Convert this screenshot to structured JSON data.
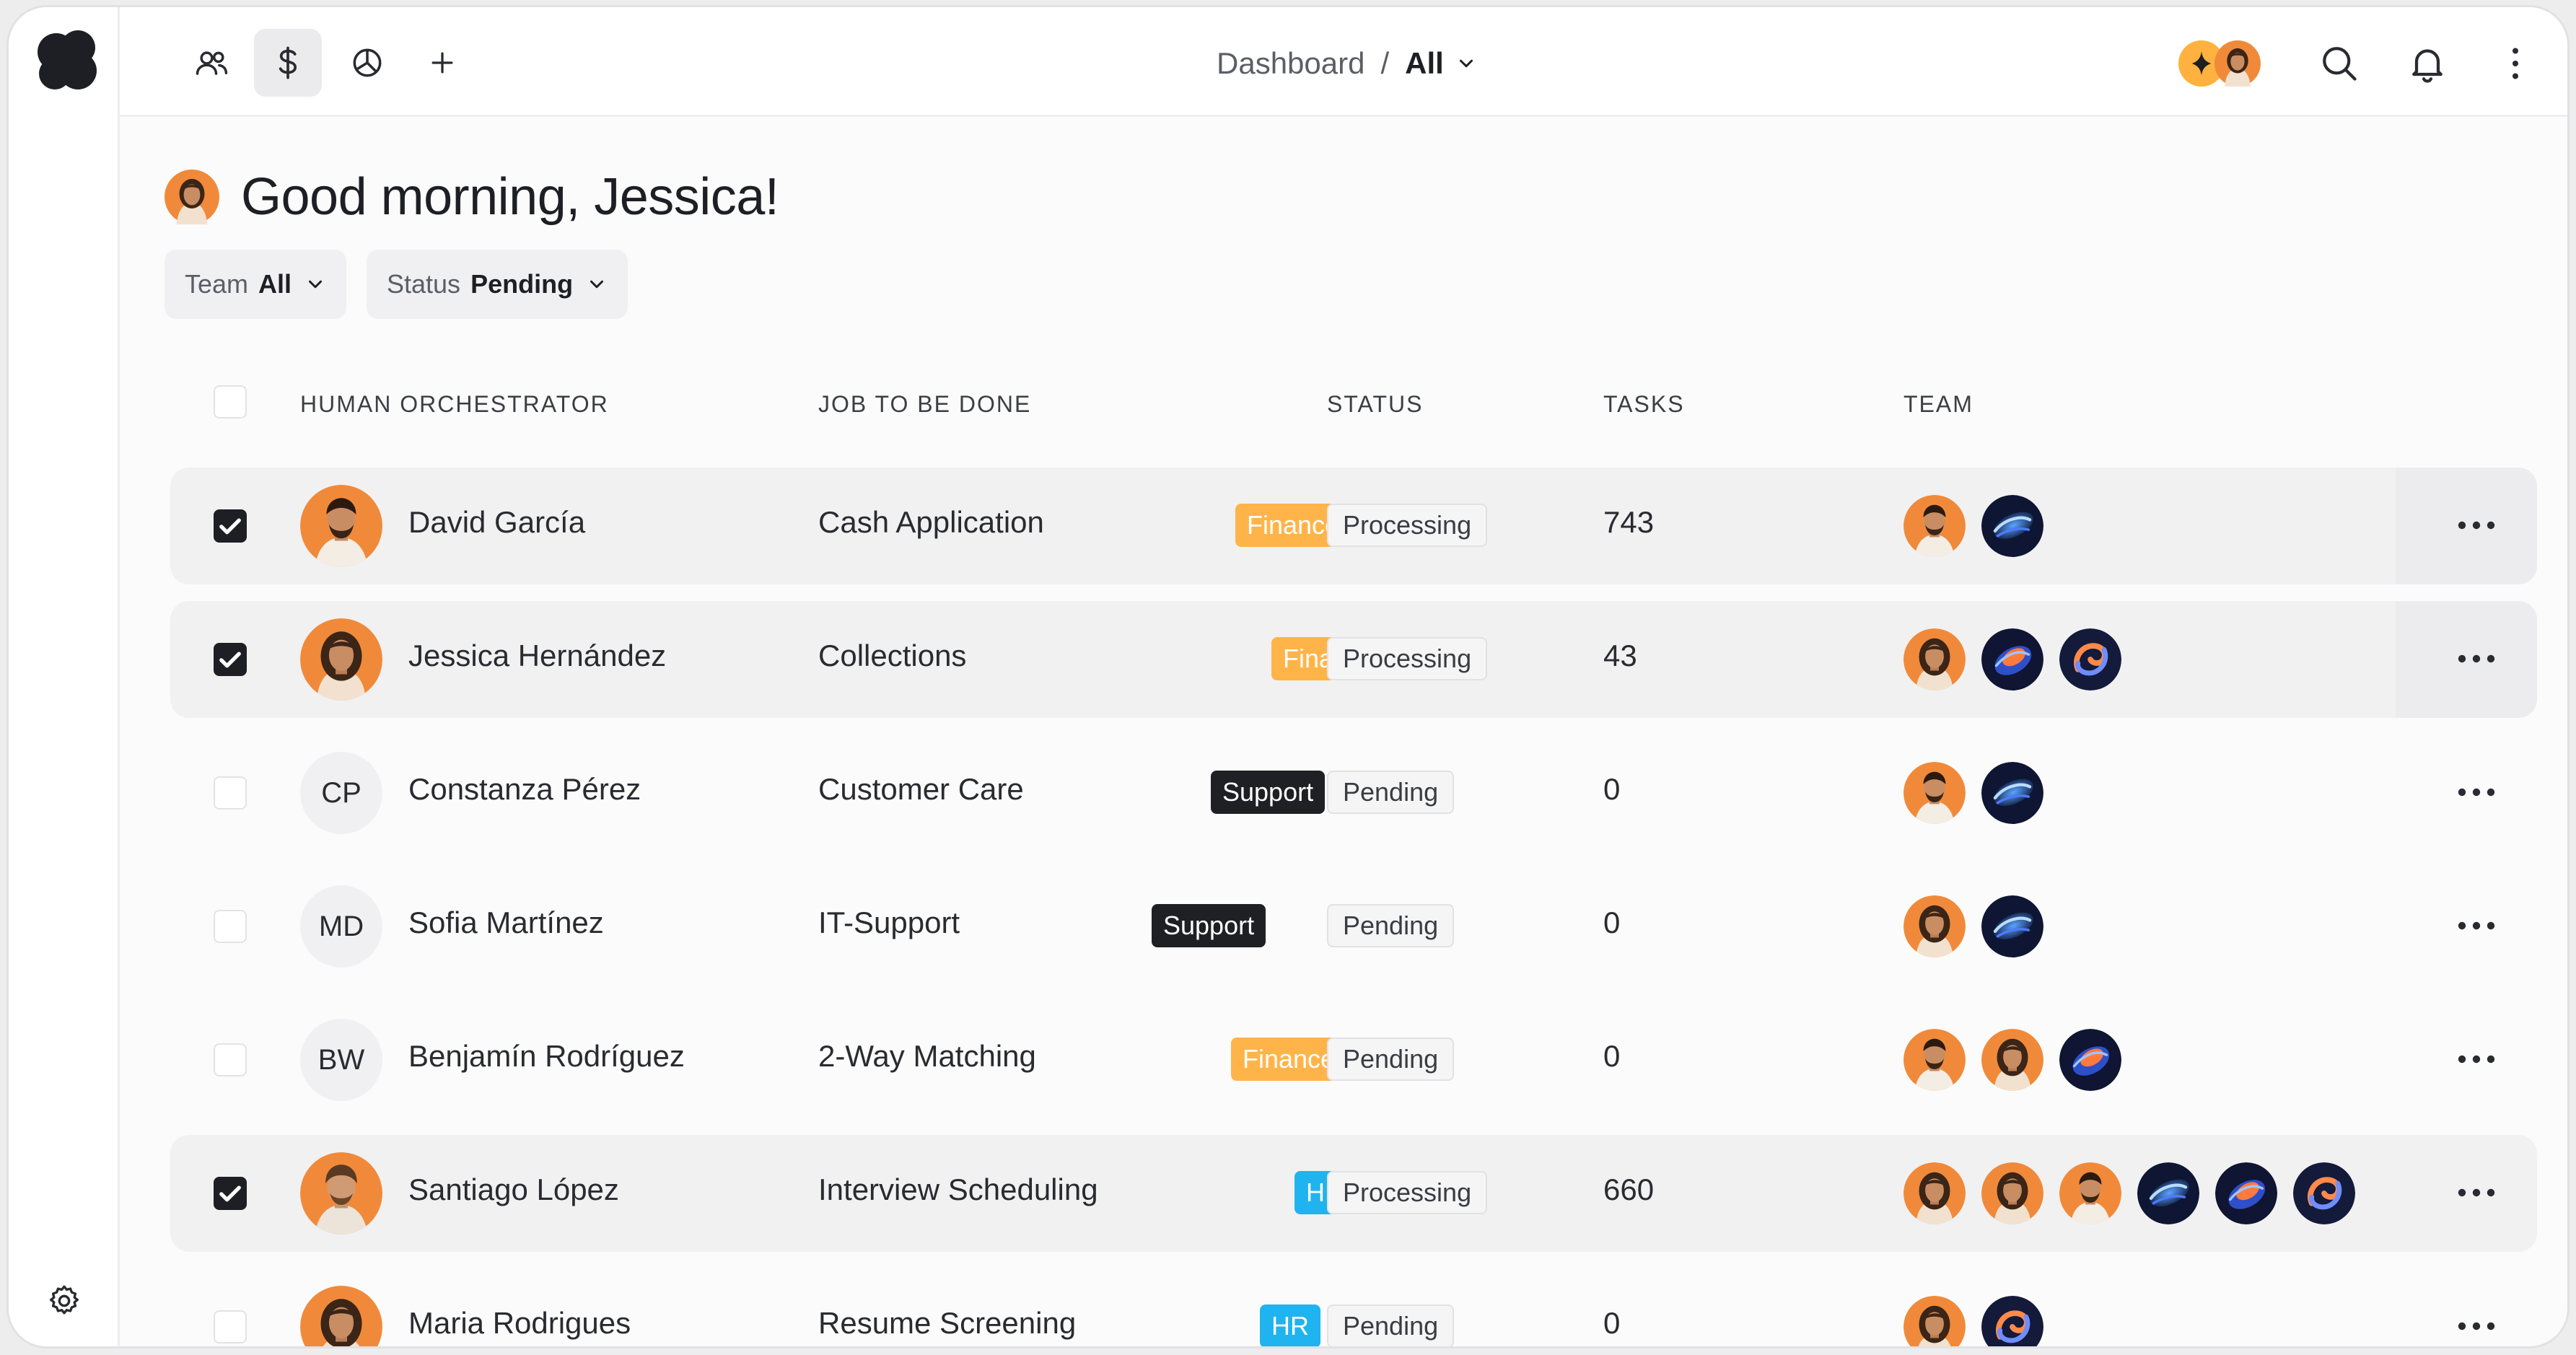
{
  "nav": {
    "breadcrumb_root": "Dashboard",
    "breadcrumb_separator": "/",
    "breadcrumb_current": "All"
  },
  "greeting": "Good morning, Jessica!",
  "filters": [
    {
      "label": "Team",
      "value": "All"
    },
    {
      "label": "Status",
      "value": "Pending"
    }
  ],
  "table": {
    "columns": [
      "HUMAN ORCHESTRATOR",
      "JOB TO BE DONE",
      "STATUS",
      "TASKS",
      "TEAM"
    ],
    "rows": [
      {
        "name": "David García",
        "initials": "",
        "avatar": "photo-man",
        "job": "Cash Application",
        "tag": "Finance",
        "status": "Processing",
        "tasks": "743",
        "checked": true,
        "team": [
          "person-man",
          "ai-agent-blue"
        ]
      },
      {
        "name": "Jessica Hernández",
        "initials": "",
        "avatar": "photo-woman",
        "job": "Collections",
        "tag": "Finance",
        "status": "Processing",
        "tasks": "43",
        "checked": true,
        "team": [
          "person-woman",
          "ai-agent-orange",
          "ai-agent-swirl"
        ]
      },
      {
        "name": "Constanza Pérez",
        "initials": "CP",
        "avatar": "",
        "job": "Customer Care",
        "tag": "Support",
        "status": "Pending",
        "tasks": "0",
        "checked": false,
        "team": [
          "person-man",
          "ai-agent-blue"
        ]
      },
      {
        "name": "Sofia Martínez",
        "initials": "MD",
        "avatar": "",
        "job": "IT-Support",
        "tag": "Support",
        "status": "Pending",
        "tasks": "0",
        "checked": false,
        "team": [
          "person-woman",
          "ai-agent-blue"
        ]
      },
      {
        "name": "Benjamín Rodríguez",
        "initials": "BW",
        "avatar": "",
        "job": "2-Way Matching",
        "tag": "Finance",
        "status": "Pending",
        "tasks": "0",
        "checked": false,
        "team": [
          "person-man",
          "person-woman",
          "ai-agent-orange"
        ]
      },
      {
        "name": "Santiago López",
        "initials": "",
        "avatar": "photo-man2",
        "job": "Interview Scheduling",
        "tag": "HR",
        "status": "Processing",
        "tasks": "660",
        "checked": true,
        "team": [
          "person-woman",
          "person-woman",
          "person-man",
          "ai-agent-blue",
          "ai-agent-orange",
          "ai-agent-swirl"
        ]
      },
      {
        "name": "Maria Rodrigues",
        "initials": "",
        "avatar": "photo-woman",
        "job": "Resume Screening",
        "tag": "HR",
        "status": "Pending",
        "tasks": "0",
        "checked": false,
        "team": [
          "person-woman",
          "ai-agent-swirl"
        ]
      }
    ]
  },
  "colors": {
    "finance_tag": "#ffb44a",
    "support_tag": "#1f2024",
    "hr_tag": "#1fb3ef",
    "avatar_orange": "#f08a3a",
    "sparkle": "#ffb23f"
  }
}
